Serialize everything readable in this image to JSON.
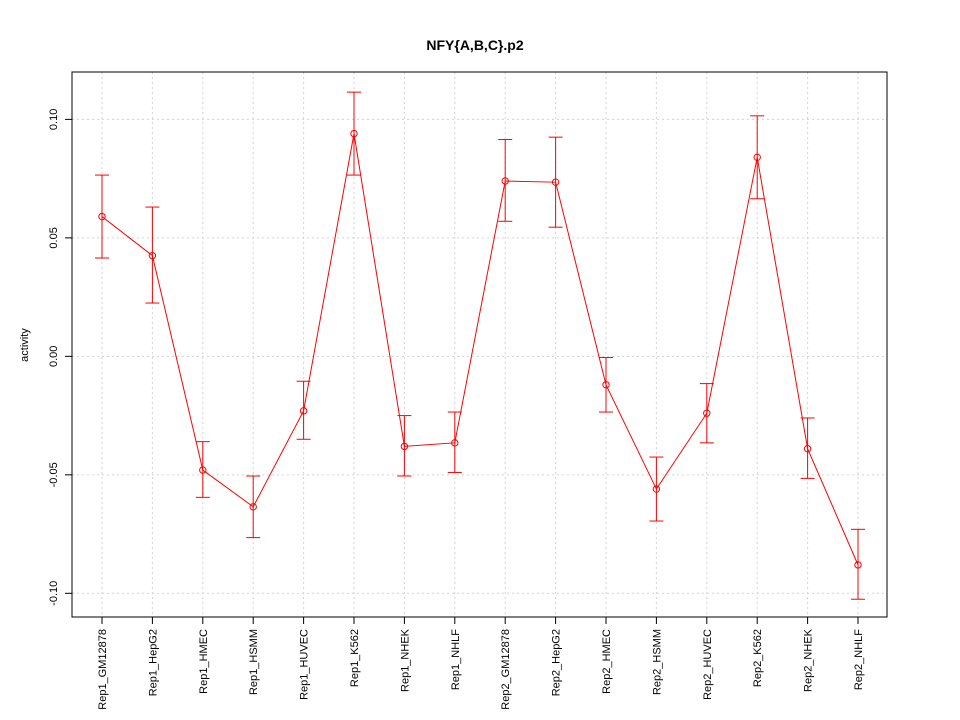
{
  "chart_data": {
    "type": "line",
    "title": "NFY{A,B,C}.p2",
    "xlabel": "",
    "ylabel": "activity",
    "ylim": [
      -0.11,
      0.12
    ],
    "yticks": [
      -0.1,
      -0.05,
      0.0,
      0.05,
      0.1
    ],
    "ytick_labels": [
      "-0.10",
      "-0.05",
      "0.00",
      "0.05",
      "0.10"
    ],
    "grid": true,
    "categories": [
      "Rep1_GM12878",
      "Rep1_HepG2",
      "Rep1_HMEC",
      "Rep1_HSMM",
      "Rep1_HUVEC",
      "Rep1_K562",
      "Rep1_NHEK",
      "Rep1_NHLF",
      "Rep2_GM12878",
      "Rep2_HepG2",
      "Rep2_HMEC",
      "Rep2_HSMM",
      "Rep2_HUVEC",
      "Rep2_K562",
      "Rep2_NHEK",
      "Rep2_NHLF"
    ],
    "series": [
      {
        "color": "#ff0000",
        "values": [
          0.059,
          0.0425,
          -0.048,
          -0.0635,
          -0.023,
          0.094,
          -0.038,
          -0.0365,
          0.074,
          0.0735,
          -0.012,
          -0.056,
          -0.024,
          0.084,
          -0.039,
          -0.088
        ],
        "error_upper": [
          0.0765,
          0.063,
          -0.036,
          -0.0505,
          -0.0105,
          0.1115,
          -0.025,
          -0.0235,
          0.0915,
          0.0925,
          -0.0005,
          -0.0425,
          -0.0115,
          0.1015,
          -0.026,
          -0.073
        ],
        "error_lower": [
          0.0415,
          0.0225,
          -0.0595,
          -0.0765,
          -0.035,
          0.0765,
          -0.0505,
          -0.049,
          0.057,
          0.0545,
          -0.0235,
          -0.0695,
          -0.0365,
          0.0665,
          -0.0515,
          -0.1025
        ]
      }
    ]
  }
}
